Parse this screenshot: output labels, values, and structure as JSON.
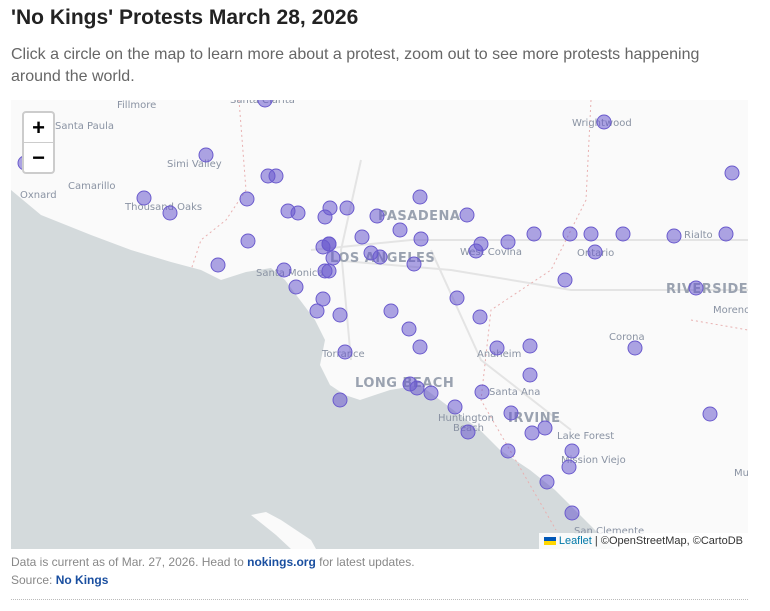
{
  "title": "'No Kings' Protests March 28, 2026",
  "subtitle": "Click a circle on the map to learn more about a protest, zoom out to see more protests happening around the world.",
  "map": {
    "zoom_in": "+",
    "zoom_out": "−",
    "marker_color": "#6a5acd",
    "labels": [
      "Fillmore",
      "Santa Clarita",
      "Santa Paula",
      "Simi Valley",
      "Oxnard",
      "Camarillo",
      "Thousand Oaks",
      "Santa Monica",
      "PASADENA",
      "LOS ANGELES",
      "West Covina",
      "Ontario",
      "Rialto",
      "RIVERSIDE",
      "Moreno",
      "Wrightwood",
      "Torrance",
      "LONG BEACH",
      "Anaheim",
      "Santa Ana",
      "Corona",
      "Huntington",
      "Beach",
      "IRVINE",
      "Lake Forest",
      "Mission Viejo",
      "San Clemente",
      "Mu"
    ],
    "attribution": {
      "leaflet": "Leaflet",
      "rest": "| ©OpenStreetMap, ©CartoDB"
    }
  },
  "footer": {
    "note_pre": "Data is current as of Mar. 27, 2026. Head to ",
    "note_link": "nokings.org",
    "note_post": " for latest updates.",
    "source_label": "Source: ",
    "source_link": "No Kings"
  }
}
